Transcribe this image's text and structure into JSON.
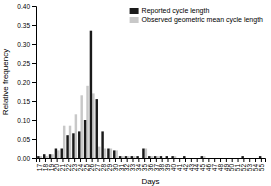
{
  "chart_data": {
    "type": "bar",
    "x_label": "Days",
    "y_label": "Relative frequency",
    "categories": [
      "17",
      "18",
      "19",
      "20",
      "21",
      "22",
      "23",
      "24",
      "25",
      "26",
      "27",
      "28",
      "29",
      "30",
      "31",
      "32",
      "33",
      "34",
      "35",
      "36",
      "37",
      "38",
      "39",
      "40",
      "41",
      "42",
      "43",
      "44",
      "45",
      "46",
      "47",
      "48",
      "49",
      "50",
      "51",
      "52",
      "53",
      "54",
      "55"
    ],
    "series": [
      {
        "name": "Reported cycle length",
        "color": "#1a1a1a",
        "values": [
          0.005,
          0.01,
          0.01,
          0.025,
          0.025,
          0.06,
          0.065,
          0.07,
          0.1,
          0.335,
          0.155,
          0.07,
          0.025,
          0.02,
          0.005,
          0.005,
          0.005,
          0.005,
          0.025,
          0.005,
          0.005,
          0.005,
          0.005,
          0.005,
          0.0,
          0.005,
          0.0,
          0.0,
          0.005,
          0.0,
          0.0,
          0.0,
          0.0,
          0.0,
          0.0,
          0.005,
          0.0,
          0.0,
          0.005
        ]
      },
      {
        "name": "Observed geometric mean cycle length",
        "color": "#c8c8c8",
        "values": [
          0.005,
          0.005,
          0.01,
          0.02,
          0.085,
          0.085,
          0.115,
          0.165,
          0.19,
          0.17,
          0.03,
          0.025,
          0.025,
          0.02,
          0.005,
          0.005,
          0.005,
          0.0,
          0.025,
          0.005,
          0.005,
          0.0,
          0.0,
          0.005,
          0.0,
          0.0,
          0.0,
          0.0,
          0.005,
          0.0,
          0.0,
          0.0,
          0.0,
          0.0,
          0.0,
          0.0,
          0.0,
          0.0,
          0.0
        ]
      }
    ],
    "ylim": [
      0.0,
      0.4
    ],
    "yticks": [
      {
        "value": 0.0,
        "label": "0.00"
      },
      {
        "value": 0.05,
        "label": "0.05"
      },
      {
        "value": 0.1,
        "label": "0.10"
      },
      {
        "value": 0.15,
        "label": "0.15"
      },
      {
        "value": 0.2,
        "label": "0.20"
      },
      {
        "value": 0.25,
        "label": "0.25"
      },
      {
        "value": 0.3,
        "label": "0.30"
      },
      {
        "value": 0.35,
        "label": "0.35"
      },
      {
        "value": 0.4,
        "label": "0.40"
      }
    ],
    "legend": "upper right",
    "grid": false
  }
}
